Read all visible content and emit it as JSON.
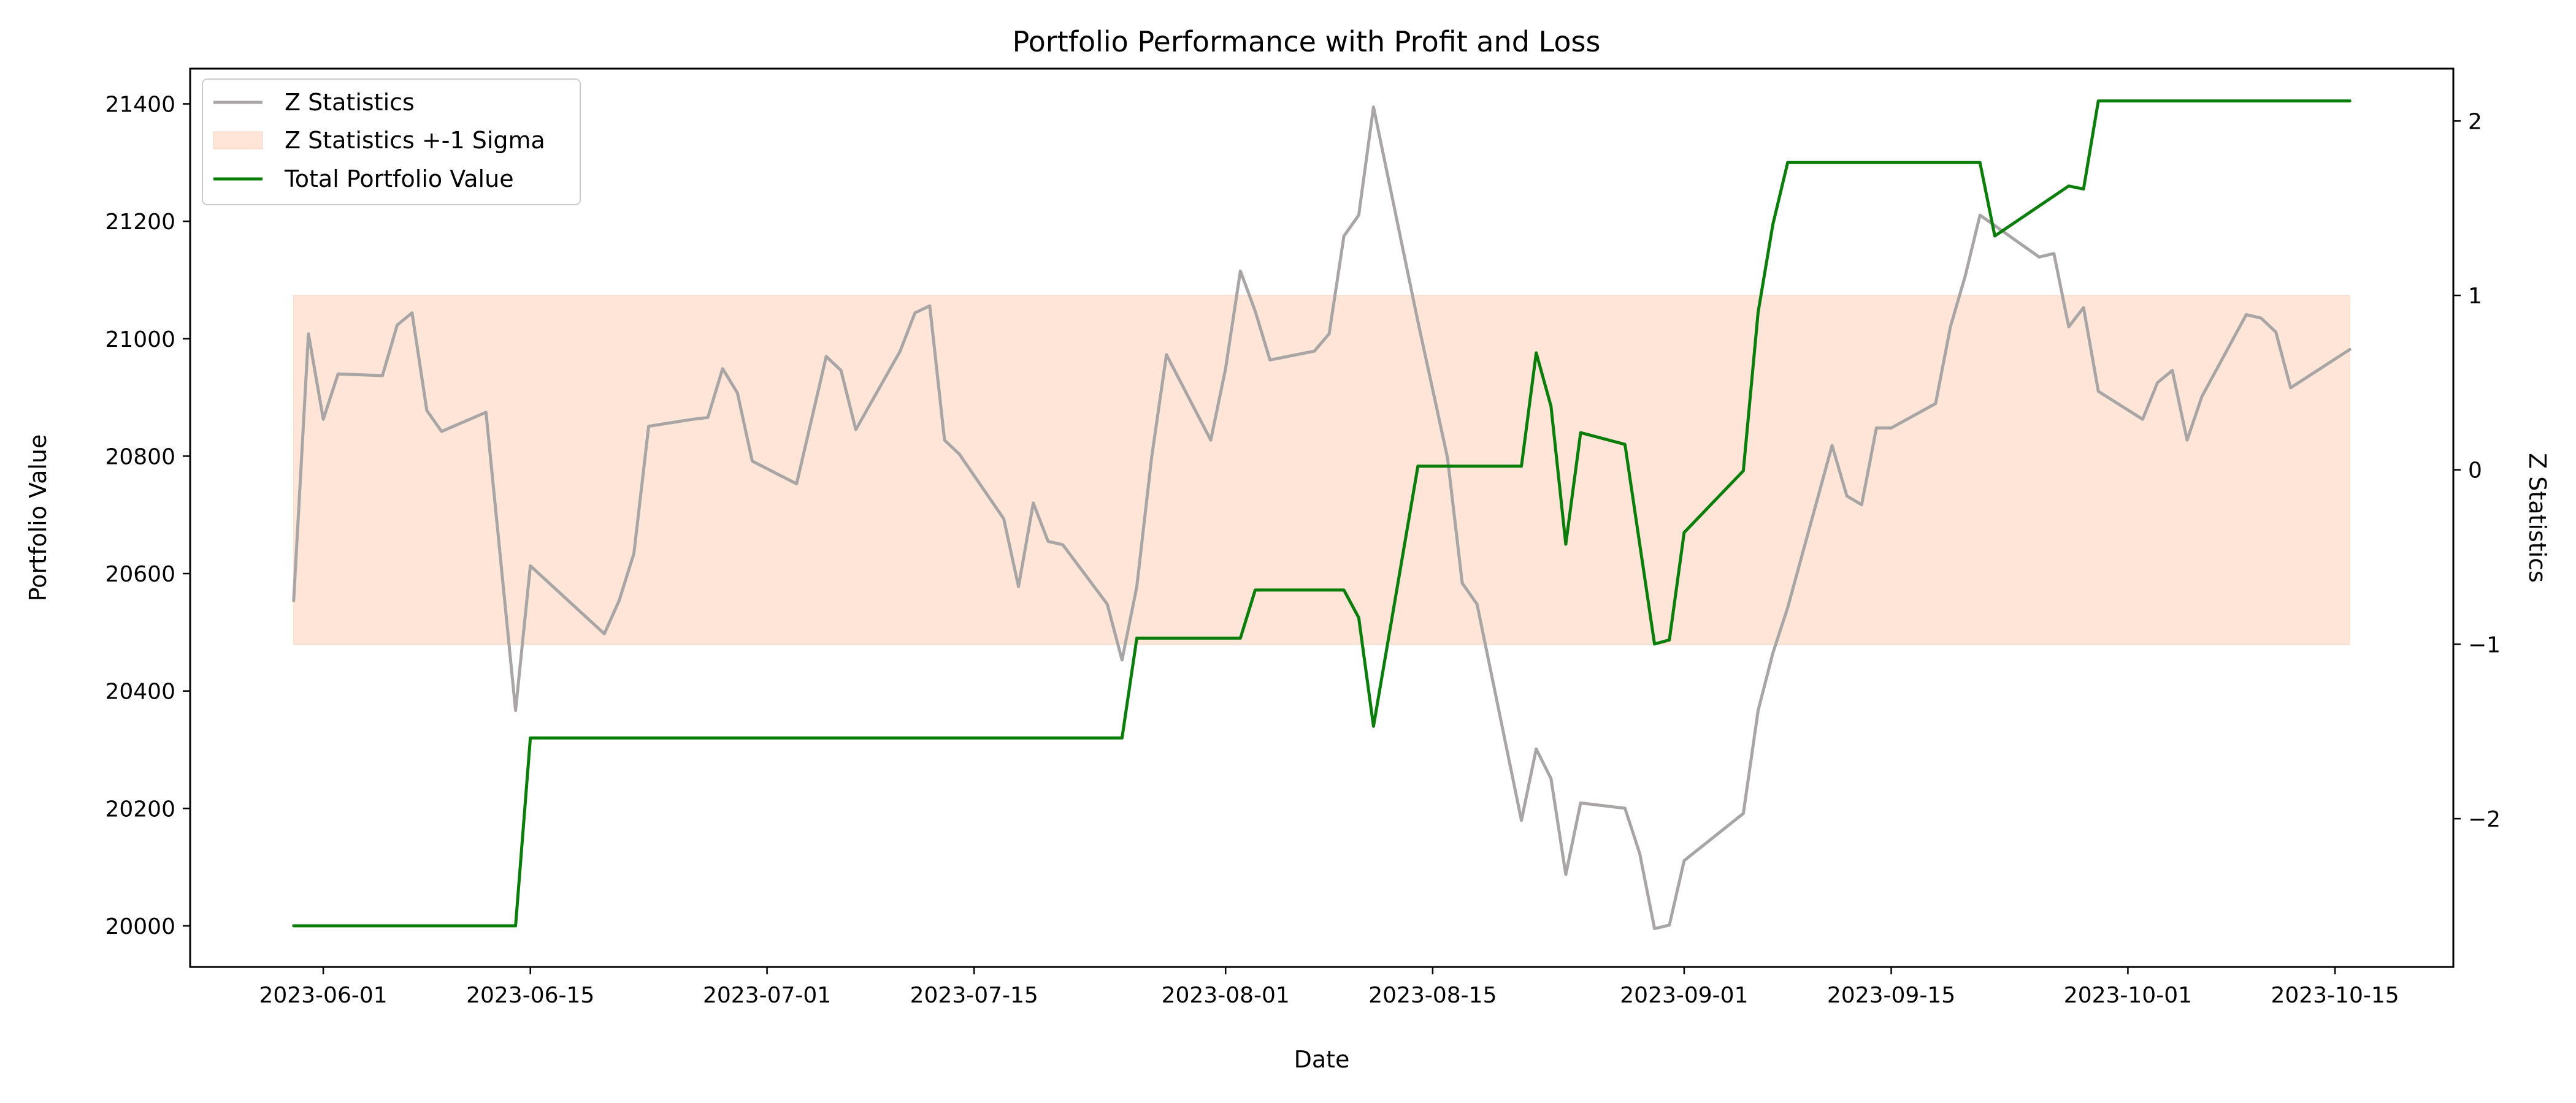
{
  "chart_data": {
    "type": "line",
    "title": "Portfolio Performance with Profit and Loss",
    "xlabel": "Date",
    "ylabel_left": "Portfolio Value",
    "ylabel_right": "Z Statistics",
    "x_range": [
      "2023-05-23",
      "2023-10-23"
    ],
    "ylim_left": [
      19930,
      21460
    ],
    "ylim_right": [
      -2.85,
      2.3
    ],
    "x_ticks": [
      "2023-06-01",
      "2023-06-15",
      "2023-07-01",
      "2023-07-15",
      "2023-08-01",
      "2023-08-15",
      "2023-09-01",
      "2023-09-15",
      "2023-10-01",
      "2023-10-15"
    ],
    "y_ticks_left": [
      20000,
      20200,
      20400,
      20600,
      20800,
      21000,
      21200,
      21400
    ],
    "y_ticks_right": [
      -2,
      -1,
      0,
      1,
      2
    ],
    "y_tick_labels_right": [
      "−2",
      "−1",
      "0",
      "1",
      "2"
    ],
    "grid": false,
    "legend_position": "top-left",
    "legend": [
      "Z Statistics",
      "Z Statistics +-1 Sigma",
      "Total Portfolio Value"
    ],
    "band": {
      "name": "Z Statistics +-1 Sigma",
      "axis": "right",
      "x_start": "2023-05-30",
      "x_end": "2023-10-16",
      "lower": -1,
      "upper": 1,
      "color": "#fde6d8"
    },
    "series": [
      {
        "name": "Z Statistics",
        "axis": "right",
        "color": "#a9a5a5",
        "points": [
          [
            "2023-05-30",
            -0.75
          ],
          [
            "2023-05-31",
            0.78
          ],
          [
            "2023-06-01",
            0.29
          ],
          [
            "2023-06-02",
            0.55
          ],
          [
            "2023-06-05",
            0.54
          ],
          [
            "2023-06-06",
            0.83
          ],
          [
            "2023-06-07",
            0.9
          ],
          [
            "2023-06-08",
            0.34
          ],
          [
            "2023-06-09",
            0.22
          ],
          [
            "2023-06-12",
            0.33
          ],
          [
            "2023-06-14",
            -1.38
          ],
          [
            "2023-06-15",
            -0.55
          ],
          [
            "2023-06-20",
            -0.94
          ],
          [
            "2023-06-21",
            -0.75
          ],
          [
            "2023-06-22",
            -0.48
          ],
          [
            "2023-06-23",
            0.25
          ],
          [
            "2023-06-26",
            0.29
          ],
          [
            "2023-06-27",
            0.3
          ],
          [
            "2023-06-28",
            0.58
          ],
          [
            "2023-06-29",
            0.44
          ],
          [
            "2023-06-30",
            0.05
          ],
          [
            "2023-07-03",
            -0.08
          ],
          [
            "2023-07-05",
            0.65
          ],
          [
            "2023-07-06",
            0.57
          ],
          [
            "2023-07-07",
            0.23
          ],
          [
            "2023-07-10",
            0.68
          ],
          [
            "2023-07-11",
            0.9
          ],
          [
            "2023-07-12",
            0.94
          ],
          [
            "2023-07-13",
            0.17
          ],
          [
            "2023-07-14",
            0.09
          ],
          [
            "2023-07-17",
            -0.28
          ],
          [
            "2023-07-18",
            -0.67
          ],
          [
            "2023-07-19",
            -0.19
          ],
          [
            "2023-07-20",
            -0.41
          ],
          [
            "2023-07-21",
            -0.43
          ],
          [
            "2023-07-24",
            -0.77
          ],
          [
            "2023-07-25",
            -1.09
          ],
          [
            "2023-07-26",
            -0.67
          ],
          [
            "2023-07-27",
            0.07
          ],
          [
            "2023-07-28",
            0.66
          ],
          [
            "2023-07-31",
            0.17
          ],
          [
            "2023-08-01",
            0.58
          ],
          [
            "2023-08-02",
            1.14
          ],
          [
            "2023-08-03",
            0.91
          ],
          [
            "2023-08-04",
            0.63
          ],
          [
            "2023-08-07",
            0.68
          ],
          [
            "2023-08-08",
            0.78
          ],
          [
            "2023-08-09",
            1.34
          ],
          [
            "2023-08-10",
            1.46
          ],
          [
            "2023-08-11",
            2.08
          ],
          [
            "2023-08-14",
            0.85
          ],
          [
            "2023-08-16",
            0.07
          ],
          [
            "2023-08-17",
            -0.65
          ],
          [
            "2023-08-18",
            -0.77
          ],
          [
            "2023-08-21",
            -2.01
          ],
          [
            "2023-08-22",
            -1.6
          ],
          [
            "2023-08-23",
            -1.77
          ],
          [
            "2023-08-24",
            -2.32
          ],
          [
            "2023-08-25",
            -1.91
          ],
          [
            "2023-08-28",
            -1.94
          ],
          [
            "2023-08-29",
            -2.2
          ],
          [
            "2023-08-30",
            -2.63
          ],
          [
            "2023-08-31",
            -2.61
          ],
          [
            "2023-09-01",
            -2.24
          ],
          [
            "2023-09-05",
            -1.97
          ],
          [
            "2023-09-06",
            -1.38
          ],
          [
            "2023-09-07",
            -1.05
          ],
          [
            "2023-09-08",
            -0.79
          ],
          [
            "2023-09-11",
            0.14
          ],
          [
            "2023-09-12",
            -0.15
          ],
          [
            "2023-09-13",
            -0.2
          ],
          [
            "2023-09-14",
            0.24
          ],
          [
            "2023-09-15",
            0.24
          ],
          [
            "2023-09-18",
            0.38
          ],
          [
            "2023-09-19",
            0.82
          ],
          [
            "2023-09-20",
            1.11
          ],
          [
            "2023-09-21",
            1.46
          ],
          [
            "2023-09-25",
            1.22
          ],
          [
            "2023-09-26",
            1.24
          ],
          [
            "2023-09-27",
            0.82
          ],
          [
            "2023-09-28",
            0.93
          ],
          [
            "2023-09-29",
            0.45
          ],
          [
            "2023-10-02",
            0.29
          ],
          [
            "2023-10-03",
            0.5
          ],
          [
            "2023-10-04",
            0.57
          ],
          [
            "2023-10-05",
            0.17
          ],
          [
            "2023-10-06",
            0.42
          ],
          [
            "2023-10-09",
            0.89
          ],
          [
            "2023-10-10",
            0.87
          ],
          [
            "2023-10-11",
            0.79
          ],
          [
            "2023-10-12",
            0.47
          ],
          [
            "2023-10-16",
            0.69
          ]
        ]
      },
      {
        "name": "Total Portfolio Value",
        "axis": "left",
        "color": "#0a7d0a",
        "points": [
          [
            "2023-05-30",
            20000
          ],
          [
            "2023-06-14",
            20000
          ],
          [
            "2023-06-15",
            20320
          ],
          [
            "2023-07-25",
            20320
          ],
          [
            "2023-07-26",
            20490
          ],
          [
            "2023-08-02",
            20490
          ],
          [
            "2023-08-03",
            20572
          ],
          [
            "2023-08-09",
            20572
          ],
          [
            "2023-08-10",
            20525
          ],
          [
            "2023-08-11",
            20340
          ],
          [
            "2023-08-14",
            20783
          ],
          [
            "2023-08-21",
            20783
          ],
          [
            "2023-08-22",
            20976
          ],
          [
            "2023-08-23",
            20885
          ],
          [
            "2023-08-24",
            20650
          ],
          [
            "2023-08-25",
            20840
          ],
          [
            "2023-08-28",
            20820
          ],
          [
            "2023-08-30",
            20480
          ],
          [
            "2023-08-31",
            20487
          ],
          [
            "2023-09-01",
            20670
          ],
          [
            "2023-09-05",
            20775
          ],
          [
            "2023-09-06",
            21045
          ],
          [
            "2023-09-07",
            21195
          ],
          [
            "2023-09-08",
            21300
          ],
          [
            "2023-09-21",
            21300
          ],
          [
            "2023-09-22",
            21175
          ],
          [
            "2023-09-27",
            21260
          ],
          [
            "2023-09-28",
            21255
          ],
          [
            "2023-09-29",
            21405
          ],
          [
            "2023-10-16",
            21405
          ]
        ]
      }
    ]
  }
}
